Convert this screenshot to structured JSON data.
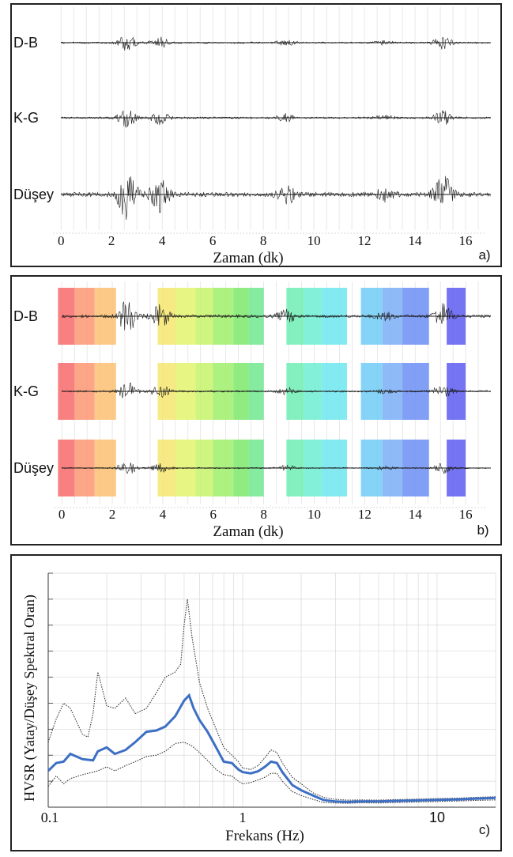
{
  "colors": {
    "trace": "#1a1a1a",
    "hvsr_mean": "#3d6fc4",
    "hvsr_bounds": "#333333",
    "grid": "#d9d9d9",
    "windows": [
      "#f86a6a",
      "#fb9672",
      "#fcbf72",
      "#f6e66e",
      "#e3f46c",
      "#c5f36a",
      "#9ff06b",
      "#7de86a",
      "#6fe88e",
      "#6fedb4",
      "#6deed2",
      "#6ee6ee",
      "#70cdf6",
      "#7aaef6",
      "#6c8ef5",
      "#5d5cf0"
    ]
  },
  "chart_data": [
    {
      "type": "line",
      "panel_label": "a)",
      "xlabel": "Zaman (dk)",
      "x_ticks": [
        "0",
        "2",
        "4",
        "6",
        "8",
        "10",
        "12",
        "14",
        "16"
      ],
      "xlim": [
        -0.6,
        17
      ],
      "series": [
        {
          "name": "D-B",
          "amplitude_scale": 0.7
        },
        {
          "name": "K-G",
          "amplitude_scale": 0.85
        },
        {
          "name": "Düşey",
          "amplitude_scale": 2.2
        }
      ],
      "bursts": [
        {
          "t": 2.6,
          "strength": 1.0
        },
        {
          "t": 3.9,
          "strength": 0.7
        },
        {
          "t": 8.9,
          "strength": 0.4
        },
        {
          "t": 12.8,
          "strength": 0.25
        },
        {
          "t": 15.1,
          "strength": 0.8
        }
      ]
    },
    {
      "type": "line",
      "panel_label": "b)",
      "xlabel": "Zaman (dk)",
      "x_ticks": [
        "0",
        "2",
        "4",
        "6",
        "8",
        "10",
        "12",
        "14",
        "16"
      ],
      "xlim": [
        -0.6,
        17
      ],
      "series": [
        {
          "name": "D-B",
          "amplitude_scale": 1.4
        },
        {
          "name": "K-G",
          "amplitude_scale": 0.8
        },
        {
          "name": "Düşey",
          "amplitude_scale": 0.6
        }
      ],
      "bursts": [
        {
          "t": 2.6,
          "strength": 1.0
        },
        {
          "t": 3.9,
          "strength": 0.7
        },
        {
          "t": 8.9,
          "strength": 0.4
        },
        {
          "t": 12.8,
          "strength": 0.25
        },
        {
          "t": 15.1,
          "strength": 0.8
        }
      ],
      "windows": [
        [
          -0.15,
          0.5
        ],
        [
          0.5,
          1.3
        ],
        [
          1.3,
          2.15
        ],
        [
          3.8,
          4.5
        ],
        [
          4.5,
          5.3
        ],
        [
          5.3,
          6.0
        ],
        [
          6.0,
          6.8
        ],
        [
          6.8,
          7.4
        ],
        [
          7.4,
          8.0
        ],
        [
          8.9,
          9.6
        ],
        [
          9.6,
          10.3
        ],
        [
          10.3,
          11.3
        ],
        [
          11.85,
          12.7
        ],
        [
          12.7,
          13.5
        ],
        [
          13.5,
          14.55
        ],
        [
          15.25,
          16.0
        ]
      ]
    },
    {
      "type": "line",
      "panel_label": "c)",
      "xlabel": "Frekans (Hz)",
      "ylabel": "HVSR (Yatay/Düşey Spektral Oran)",
      "x_scale": "log",
      "xlim": [
        0.1,
        20
      ],
      "ylim": [
        0,
        9
      ],
      "x_ticks": [
        "0.1",
        "1",
        "10"
      ],
      "series": [
        {
          "id": "mean",
          "x": [
            0.1,
            0.11,
            0.12,
            0.13,
            0.15,
            0.17,
            0.18,
            0.2,
            0.22,
            0.25,
            0.28,
            0.32,
            0.36,
            0.4,
            0.45,
            0.5,
            0.53,
            0.56,
            0.6,
            0.66,
            0.73,
            0.8,
            0.88,
            0.95,
            1.0,
            1.1,
            1.2,
            1.3,
            1.4,
            1.5,
            1.6,
            1.8,
            2.0,
            2.3,
            2.6,
            3.0,
            3.5,
            4.0,
            5.0,
            6.0,
            8.0,
            10.0,
            13.0,
            16.0,
            20.0
          ],
          "y": [
            1.4,
            1.7,
            1.75,
            2.05,
            1.85,
            1.8,
            2.15,
            2.3,
            2.05,
            2.2,
            2.5,
            2.9,
            2.95,
            3.1,
            3.5,
            4.1,
            4.3,
            3.8,
            3.35,
            2.9,
            2.3,
            1.75,
            1.7,
            1.45,
            1.35,
            1.3,
            1.38,
            1.55,
            1.75,
            1.7,
            1.35,
            0.85,
            0.65,
            0.45,
            0.28,
            0.22,
            0.2,
            0.22,
            0.22,
            0.24,
            0.26,
            0.28,
            0.3,
            0.33,
            0.36
          ]
        },
        {
          "id": "upper",
          "x": [
            0.1,
            0.11,
            0.12,
            0.13,
            0.15,
            0.16,
            0.17,
            0.18,
            0.2,
            0.22,
            0.25,
            0.28,
            0.32,
            0.36,
            0.4,
            0.45,
            0.48,
            0.5,
            0.52,
            0.55,
            0.6,
            0.66,
            0.73,
            0.8,
            0.88,
            0.95,
            1.0,
            1.1,
            1.2,
            1.3,
            1.4,
            1.5,
            1.6,
            1.8,
            2.0,
            2.3,
            2.6,
            3.0,
            3.5,
            4.0,
            5.0,
            6.0,
            8.0,
            10.0,
            13.0,
            16.0,
            20.0
          ],
          "y": [
            2.5,
            3.4,
            4.0,
            3.8,
            2.8,
            2.7,
            3.6,
            5.2,
            3.9,
            3.8,
            4.2,
            3.6,
            3.8,
            4.4,
            5.0,
            5.2,
            5.5,
            7.0,
            8.0,
            6.5,
            4.8,
            3.8,
            3.0,
            2.3,
            2.0,
            1.75,
            1.5,
            1.45,
            1.6,
            1.9,
            2.2,
            2.1,
            1.7,
            1.15,
            0.9,
            0.55,
            0.38,
            0.3,
            0.27,
            0.28,
            0.27,
            0.29,
            0.31,
            0.33,
            0.35,
            0.38,
            0.4
          ]
        },
        {
          "id": "lower",
          "x": [
            0.1,
            0.11,
            0.12,
            0.13,
            0.15,
            0.17,
            0.18,
            0.2,
            0.22,
            0.25,
            0.28,
            0.32,
            0.36,
            0.4,
            0.45,
            0.5,
            0.55,
            0.6,
            0.66,
            0.73,
            0.8,
            0.88,
            0.95,
            1.0,
            1.1,
            1.2,
            1.3,
            1.4,
            1.5,
            1.6,
            1.8,
            2.0,
            2.3,
            2.6,
            3.0,
            3.5,
            4.0,
            5.0,
            6.0,
            8.0,
            10.0,
            13.0,
            16.0,
            20.0
          ],
          "y": [
            0.8,
            1.2,
            0.9,
            1.1,
            1.25,
            1.35,
            1.4,
            1.55,
            1.4,
            1.6,
            1.75,
            1.95,
            2.0,
            2.15,
            2.45,
            2.5,
            2.35,
            2.1,
            1.8,
            1.45,
            1.25,
            1.2,
            1.0,
            0.9,
            0.95,
            1.05,
            1.15,
            1.3,
            1.3,
            1.0,
            0.6,
            0.45,
            0.3,
            0.18,
            0.16,
            0.15,
            0.17,
            0.16,
            0.18,
            0.2,
            0.22,
            0.24,
            0.26,
            0.28
          ]
        }
      ]
    }
  ]
}
